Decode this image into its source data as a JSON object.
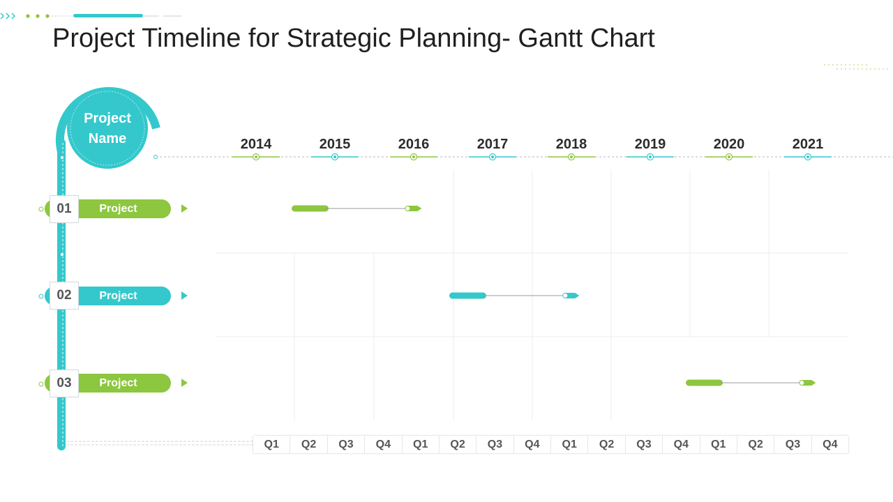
{
  "title": "Project Timeline for Strategic Planning- Gantt Chart",
  "center_label": {
    "line1": "Project",
    "line2": "Name"
  },
  "years": [
    "2014",
    "2015",
    "2016",
    "2017",
    "2018",
    "2019",
    "2020",
    "2021"
  ],
  "quarters": [
    "Q1",
    "Q2",
    "Q3",
    "Q4",
    "Q1",
    "Q2",
    "Q3",
    "Q4",
    "Q1",
    "Q2",
    "Q3",
    "Q4",
    "Q1",
    "Q2",
    "Q3",
    "Q4"
  ],
  "projects": [
    {
      "number": "01",
      "label": "Project",
      "color": "#8dc63f",
      "start_year": 2014.5,
      "end_year": 2016.1
    },
    {
      "number": "02",
      "label": "Project",
      "color": "#34c8cc",
      "start_year": 2016.5,
      "end_year": 2018.1
    },
    {
      "number": "03",
      "label": "Project",
      "color": "#8dc63f",
      "start_year": 2019.5,
      "end_year": 2021.1
    }
  ],
  "colors": {
    "green": "#8dc63f",
    "teal": "#34c8cc",
    "text": "#1f1f1f"
  }
}
